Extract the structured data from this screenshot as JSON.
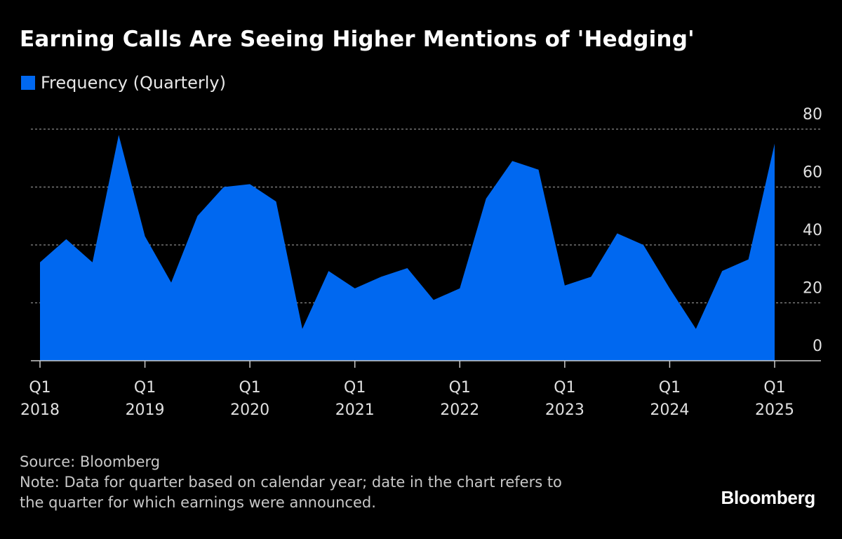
{
  "title": "Earning Calls Are Seeing Higher Mentions of 'Hedging'",
  "colors": {
    "series": "#0068f0",
    "grid": "#8a8a8a",
    "axis": "#cccccc",
    "background": "#000000"
  },
  "footer": {
    "source": "Source: Bloomberg",
    "note_line1": "Note: Data for quarter based on calendar year; date in the chart refers to",
    "note_line2": "the quarter for which earnings were announced."
  },
  "brand": "Bloomberg",
  "chart_data": {
    "type": "area",
    "title": "Earning Calls Are Seeing Higher Mentions of 'Hedging'",
    "xlabel": "",
    "ylabel": "",
    "ylim": [
      0,
      80
    ],
    "yticks": [
      0,
      20,
      40,
      60,
      80
    ],
    "grid": true,
    "legend": "top-left",
    "xticks": [
      {
        "q": "Q1",
        "year": "2018"
      },
      {
        "q": "Q1",
        "year": "2019"
      },
      {
        "q": "Q1",
        "year": "2020"
      },
      {
        "q": "Q1",
        "year": "2021"
      },
      {
        "q": "Q1",
        "year": "2022"
      },
      {
        "q": "Q1",
        "year": "2023"
      },
      {
        "q": "Q1",
        "year": "2024"
      },
      {
        "q": "Q1",
        "year": "2025"
      }
    ],
    "series": [
      {
        "name": "Frequency (Quarterly)",
        "x": [
          "2018 Q1",
          "2018 Q2",
          "2018 Q3",
          "2018 Q4",
          "2019 Q1",
          "2019 Q2",
          "2019 Q3",
          "2019 Q4",
          "2020 Q1",
          "2020 Q2",
          "2020 Q3",
          "2020 Q4",
          "2021 Q1",
          "2021 Q2",
          "2021 Q3",
          "2021 Q4",
          "2022 Q1",
          "2022 Q2",
          "2022 Q3",
          "2022 Q4",
          "2023 Q1",
          "2023 Q2",
          "2023 Q3",
          "2023 Q4",
          "2024 Q1",
          "2024 Q2",
          "2024 Q3",
          "2024 Q4",
          "2025 Q1"
        ],
        "values": [
          34,
          42,
          34,
          78,
          43,
          27,
          50,
          60,
          61,
          55,
          11,
          31,
          25,
          29,
          32,
          21,
          25,
          56,
          69,
          66,
          26,
          29,
          44,
          40,
          25,
          11,
          31,
          35,
          75
        ]
      }
    ]
  }
}
